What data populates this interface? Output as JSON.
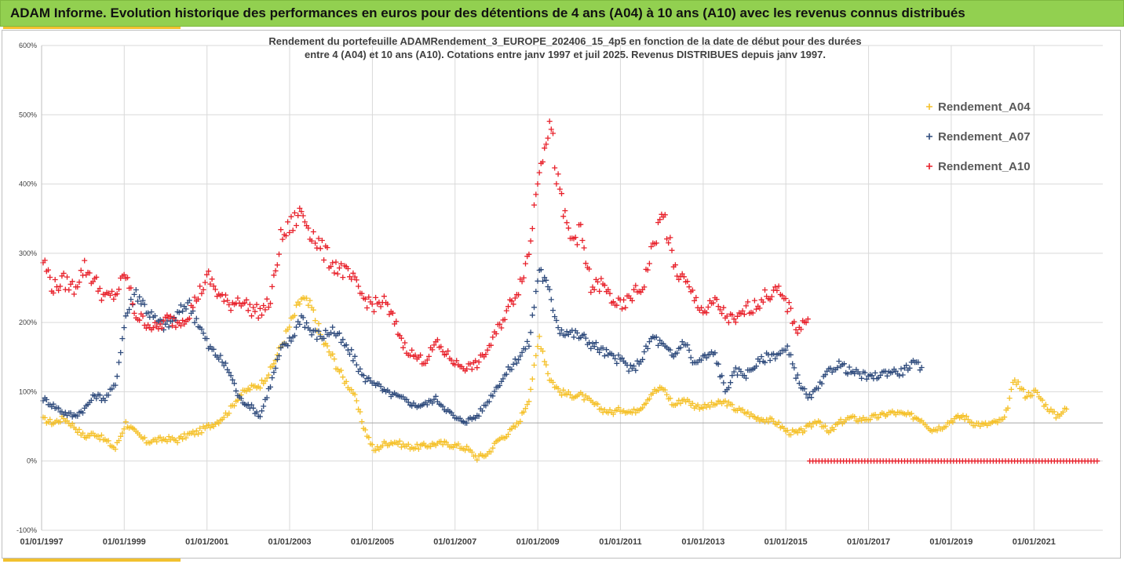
{
  "header": {
    "title": "ADAM Informe. Evolution historique des performances en euros pour des détentions de 4 ans (A04) à 10 ans (A10) avec les revenus connus distribués"
  },
  "colors": {
    "header_bg": "#92d050",
    "accent": "#f2c12e",
    "A04": "#f5c12a",
    "A07": "#2f4b7c",
    "A10": "#e8202a"
  },
  "chart_data": {
    "type": "scatter",
    "title_line1": "Rendement du portefeuille ADAMRendement_3_EUROPE_202406_15_4p5  en fonction de la date de début pour des durées",
    "title_line2": "entre 4 (A04) et 10 ans (A10). Cotations  entre janv 1997 et juil 2025. Revenus DISTRIBUES depuis janv 1997.",
    "y_ticks": [
      "600%",
      "500%",
      "400%",
      "300%",
      "200%",
      "100%",
      "0%",
      "-100%"
    ],
    "x_ticks": [
      "01/01/1997",
      "01/01/1999",
      "01/01/2001",
      "01/01/2003",
      "01/01/2005",
      "01/01/2007",
      "01/01/2009",
      "01/01/2011",
      "01/01/2013",
      "01/01/2015",
      "01/01/2017",
      "01/01/2019",
      "01/01/2021"
    ],
    "xlim": [
      "1997-01-01",
      "2022-09-01"
    ],
    "ylim": [
      -100,
      600
    ],
    "reference_line_y": 55,
    "legend_position": "top-right",
    "series": [
      {
        "name": "Rendement_A04",
        "color": "#f5c12a",
        "points": [
          [
            "1997-01",
            60
          ],
          [
            "1997-04",
            55
          ],
          [
            "1997-07",
            62
          ],
          [
            "1997-10",
            50
          ],
          [
            "1998-01",
            35
          ],
          [
            "1998-04",
            40
          ],
          [
            "1998-07",
            30
          ],
          [
            "1998-10",
            18
          ],
          [
            "1999-01",
            55
          ],
          [
            "1999-04",
            40
          ],
          [
            "1999-07",
            28
          ],
          [
            "1999-10",
            30
          ],
          [
            "2000-01",
            32
          ],
          [
            "2000-04",
            30
          ],
          [
            "2000-07",
            38
          ],
          [
            "2000-10",
            42
          ],
          [
            "2001-01",
            50
          ],
          [
            "2001-04",
            58
          ],
          [
            "2001-07",
            72
          ],
          [
            "2001-10",
            95
          ],
          [
            "2002-01",
            105
          ],
          [
            "2002-04",
            110
          ],
          [
            "2002-07",
            130
          ],
          [
            "2002-10",
            165
          ],
          [
            "2003-01",
            200
          ],
          [
            "2003-04",
            235
          ],
          [
            "2003-07",
            220
          ],
          [
            "2003-10",
            175
          ],
          [
            "2004-01",
            150
          ],
          [
            "2004-04",
            120
          ],
          [
            "2004-07",
            100
          ],
          [
            "2004-10",
            50
          ],
          [
            "2005-01",
            15
          ],
          [
            "2005-04",
            25
          ],
          [
            "2005-07",
            28
          ],
          [
            "2005-10",
            22
          ],
          [
            "2006-01",
            20
          ],
          [
            "2006-04",
            22
          ],
          [
            "2006-07",
            25
          ],
          [
            "2006-10",
            25
          ],
          [
            "2007-01",
            22
          ],
          [
            "2007-04",
            18
          ],
          [
            "2007-07",
            5
          ],
          [
            "2007-10",
            10
          ],
          [
            "2008-01",
            30
          ],
          [
            "2008-04",
            40
          ],
          [
            "2008-07",
            55
          ],
          [
            "2008-10",
            90
          ],
          [
            "2009-01",
            180
          ],
          [
            "2009-04",
            120
          ],
          [
            "2009-07",
            100
          ],
          [
            "2009-10",
            95
          ],
          [
            "2010-01",
            95
          ],
          [
            "2010-04",
            85
          ],
          [
            "2010-07",
            75
          ],
          [
            "2010-10",
            70
          ],
          [
            "2011-01",
            75
          ],
          [
            "2011-04",
            70
          ],
          [
            "2011-07",
            80
          ],
          [
            "2011-10",
            100
          ],
          [
            "2012-01",
            105
          ],
          [
            "2012-04",
            80
          ],
          [
            "2012-07",
            90
          ],
          [
            "2012-10",
            80
          ],
          [
            "2013-01",
            78
          ],
          [
            "2013-04",
            82
          ],
          [
            "2013-07",
            85
          ],
          [
            "2013-10",
            75
          ],
          [
            "2014-01",
            70
          ],
          [
            "2014-04",
            62
          ],
          [
            "2014-07",
            60
          ],
          [
            "2014-10",
            55
          ],
          [
            "2015-01",
            42
          ],
          [
            "2015-04",
            40
          ],
          [
            "2015-07",
            48
          ],
          [
            "2015-10",
            60
          ],
          [
            "2016-01",
            40
          ],
          [
            "2016-04",
            55
          ],
          [
            "2016-07",
            62
          ],
          [
            "2016-10",
            60
          ],
          [
            "2017-01",
            62
          ],
          [
            "2017-04",
            65
          ],
          [
            "2017-07",
            70
          ],
          [
            "2017-10",
            68
          ],
          [
            "2018-01",
            65
          ],
          [
            "2018-04",
            60
          ],
          [
            "2018-07",
            45
          ],
          [
            "2018-10",
            50
          ],
          [
            "2019-01",
            60
          ],
          [
            "2019-04",
            65
          ],
          [
            "2019-07",
            55
          ],
          [
            "2019-10",
            52
          ],
          [
            "2020-01",
            55
          ],
          [
            "2020-04",
            60
          ],
          [
            "2020-07",
            120
          ],
          [
            "2020-10",
            95
          ],
          [
            "2021-01",
            100
          ],
          [
            "2021-04",
            80
          ],
          [
            "2021-07",
            65
          ],
          [
            "2021-10",
            75
          ]
        ]
      },
      {
        "name": "Rendement_A07",
        "color": "#2f4b7c",
        "points": [
          [
            "1997-01",
            90
          ],
          [
            "1997-04",
            80
          ],
          [
            "1997-07",
            70
          ],
          [
            "1997-10",
            65
          ],
          [
            "1998-01",
            75
          ],
          [
            "1998-04",
            95
          ],
          [
            "1998-07",
            90
          ],
          [
            "1998-10",
            110
          ],
          [
            "1999-01",
            210
          ],
          [
            "1999-04",
            245
          ],
          [
            "1999-07",
            220
          ],
          [
            "1999-10",
            200
          ],
          [
            "2000-01",
            195
          ],
          [
            "2000-04",
            210
          ],
          [
            "2000-07",
            230
          ],
          [
            "2000-10",
            200
          ],
          [
            "2001-01",
            165
          ],
          [
            "2001-04",
            150
          ],
          [
            "2001-07",
            130
          ],
          [
            "2001-10",
            90
          ],
          [
            "2002-01",
            80
          ],
          [
            "2002-04",
            65
          ],
          [
            "2002-07",
            110
          ],
          [
            "2002-10",
            160
          ],
          [
            "2003-01",
            175
          ],
          [
            "2003-04",
            210
          ],
          [
            "2003-07",
            185
          ],
          [
            "2003-10",
            180
          ],
          [
            "2004-01",
            190
          ],
          [
            "2004-04",
            170
          ],
          [
            "2004-07",
            150
          ],
          [
            "2004-10",
            120
          ],
          [
            "2005-01",
            115
          ],
          [
            "2005-04",
            100
          ],
          [
            "2005-07",
            95
          ],
          [
            "2005-10",
            88
          ],
          [
            "2006-01",
            80
          ],
          [
            "2006-04",
            82
          ],
          [
            "2006-07",
            90
          ],
          [
            "2006-10",
            75
          ],
          [
            "2007-01",
            60
          ],
          [
            "2007-04",
            58
          ],
          [
            "2007-07",
            65
          ],
          [
            "2007-10",
            85
          ],
          [
            "2008-01",
            110
          ],
          [
            "2008-04",
            130
          ],
          [
            "2008-07",
            150
          ],
          [
            "2008-10",
            170
          ],
          [
            "2009-01",
            280
          ],
          [
            "2009-04",
            240
          ],
          [
            "2009-07",
            190
          ],
          [
            "2009-10",
            185
          ],
          [
            "2010-01",
            180
          ],
          [
            "2010-04",
            170
          ],
          [
            "2010-07",
            160
          ],
          [
            "2010-10",
            150
          ],
          [
            "2011-01",
            145
          ],
          [
            "2011-04",
            130
          ],
          [
            "2011-07",
            150
          ],
          [
            "2011-10",
            180
          ],
          [
            "2012-01",
            165
          ],
          [
            "2012-04",
            150
          ],
          [
            "2012-07",
            175
          ],
          [
            "2012-10",
            140
          ],
          [
            "2013-01",
            150
          ],
          [
            "2013-04",
            155
          ],
          [
            "2013-07",
            100
          ],
          [
            "2013-10",
            130
          ],
          [
            "2014-01",
            125
          ],
          [
            "2014-04",
            140
          ],
          [
            "2014-07",
            150
          ],
          [
            "2014-10",
            155
          ],
          [
            "2015-01",
            160
          ],
          [
            "2015-04",
            120
          ],
          [
            "2015-07",
            90
          ],
          [
            "2015-10",
            105
          ],
          [
            "2016-01",
            130
          ],
          [
            "2016-04",
            140
          ],
          [
            "2016-07",
            130
          ],
          [
            "2016-10",
            125
          ],
          [
            "2017-01",
            120
          ],
          [
            "2017-04",
            125
          ],
          [
            "2017-07",
            130
          ],
          [
            "2017-10",
            128
          ],
          [
            "2018-01",
            140
          ],
          [
            "2018-04",
            135
          ]
        ]
      },
      {
        "name": "Rendement_A10",
        "color": "#e8202a",
        "points": [
          [
            "1997-01",
            290
          ],
          [
            "1997-04",
            250
          ],
          [
            "1997-07",
            260
          ],
          [
            "1997-10",
            250
          ],
          [
            "1998-01",
            280
          ],
          [
            "1998-04",
            260
          ],
          [
            "1998-07",
            235
          ],
          [
            "1998-10",
            240
          ],
          [
            "1999-01",
            270
          ],
          [
            "1999-04",
            210
          ],
          [
            "1999-07",
            200
          ],
          [
            "1999-10",
            190
          ],
          [
            "2000-01",
            205
          ],
          [
            "2000-04",
            200
          ],
          [
            "2000-07",
            210
          ],
          [
            "2000-10",
            240
          ],
          [
            "2001-01",
            265
          ],
          [
            "2001-04",
            240
          ],
          [
            "2001-07",
            225
          ],
          [
            "2001-10",
            235
          ],
          [
            "2002-01",
            220
          ],
          [
            "2002-04",
            215
          ],
          [
            "2002-07",
            230
          ],
          [
            "2002-10",
            320
          ],
          [
            "2003-01",
            340
          ],
          [
            "2003-04",
            360
          ],
          [
            "2003-07",
            330
          ],
          [
            "2003-10",
            305
          ],
          [
            "2004-01",
            285
          ],
          [
            "2004-04",
            275
          ],
          [
            "2004-07",
            260
          ],
          [
            "2004-10",
            235
          ],
          [
            "2005-01",
            225
          ],
          [
            "2005-04",
            230
          ],
          [
            "2005-07",
            200
          ],
          [
            "2005-10",
            165
          ],
          [
            "2006-01",
            150
          ],
          [
            "2006-04",
            145
          ],
          [
            "2006-07",
            170
          ],
          [
            "2006-10",
            155
          ],
          [
            "2007-01",
            140
          ],
          [
            "2007-04",
            135
          ],
          [
            "2007-07",
            140
          ],
          [
            "2007-10",
            160
          ],
          [
            "2008-01",
            190
          ],
          [
            "2008-04",
            220
          ],
          [
            "2008-07",
            250
          ],
          [
            "2008-10",
            300
          ],
          [
            "2009-01",
            430
          ],
          [
            "2009-04",
            490
          ],
          [
            "2009-07",
            380
          ],
          [
            "2009-10",
            320
          ],
          [
            "2010-01",
            330
          ],
          [
            "2010-04",
            250
          ],
          [
            "2010-07",
            255
          ],
          [
            "2010-10",
            235
          ],
          [
            "2011-01",
            220
          ],
          [
            "2011-04",
            240
          ],
          [
            "2011-07",
            250
          ],
          [
            "2011-10",
            310
          ],
          [
            "2012-01",
            360
          ],
          [
            "2012-04",
            280
          ],
          [
            "2012-07",
            260
          ],
          [
            "2012-10",
            235
          ],
          [
            "2013-01",
            215
          ],
          [
            "2013-04",
            230
          ],
          [
            "2013-07",
            210
          ],
          [
            "2013-10",
            200
          ],
          [
            "2014-01",
            220
          ],
          [
            "2014-04",
            225
          ],
          [
            "2014-07",
            240
          ],
          [
            "2014-10",
            245
          ],
          [
            "2015-01",
            225
          ],
          [
            "2015-04",
            190
          ],
          [
            "2015-07",
            205
          ]
        ],
        "zero_band": {
          "from": "2015-08",
          "to": "2022-08",
          "value": 0
        }
      }
    ]
  }
}
